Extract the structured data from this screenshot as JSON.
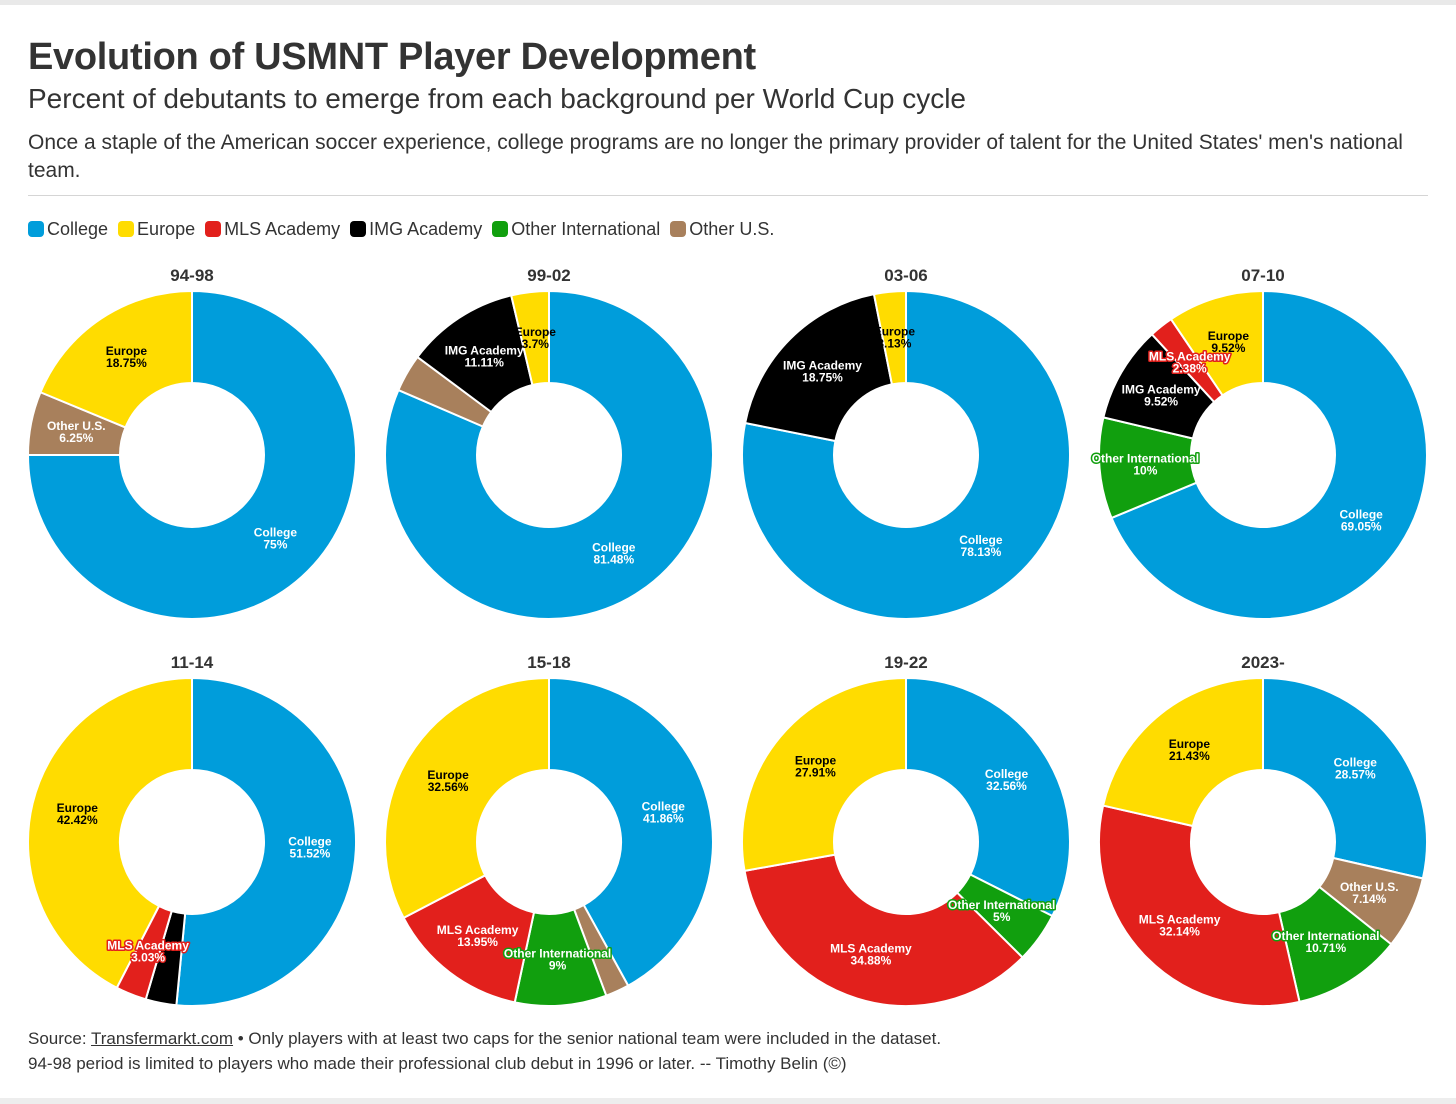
{
  "header": {
    "title": "Evolution of USMNT Player Development",
    "subtitle": "Percent of debutants to emerge from each background per World Cup cycle",
    "description": "Once a staple of the American soccer experience, college programs are no longer the primary provider of talent for the United States' men's national team."
  },
  "colors": {
    "College": "#009ddb",
    "Europe": "#ffdc00",
    "MLS Academy": "#e2201c",
    "IMG Academy": "#000000",
    "Other International": "#119f0e",
    "Other U.S.": "#a8805c"
  },
  "legend": [
    {
      "label": "College",
      "color": "#009ddb"
    },
    {
      "label": "Europe",
      "color": "#ffdc00"
    },
    {
      "label": "MLS Academy",
      "color": "#e2201c"
    },
    {
      "label": "IMG Academy",
      "color": "#000000"
    },
    {
      "label": "Other International",
      "color": "#119f0e"
    },
    {
      "label": "Other U.S.",
      "color": "#a8805c"
    }
  ],
  "chart_data": [
    {
      "type": "donut",
      "title": "94-98",
      "slices": [
        {
          "label": "College",
          "value": 75,
          "text": "75%"
        },
        {
          "label": "Europe",
          "value": 18.75,
          "text": "18.75%"
        },
        {
          "label": "Other U.S.",
          "value": 6.25,
          "text": "6.25%"
        }
      ]
    },
    {
      "type": "donut",
      "title": "99-02",
      "slices": [
        {
          "label": "College",
          "value": 81.48,
          "text": "81.48%"
        },
        {
          "label": "Europe",
          "value": 3.7,
          "text": "3.7%"
        },
        {
          "label": "IMG Academy",
          "value": 11.11,
          "text": "11.11%"
        },
        {
          "label": "Other U.S.",
          "value": 3.71
        }
      ]
    },
    {
      "type": "donut",
      "title": "03-06",
      "slices": [
        {
          "label": "College",
          "value": 78.13,
          "text": "78.13%"
        },
        {
          "label": "Europe",
          "value": 3.13,
          "text": "3.13%"
        },
        {
          "label": "IMG Academy",
          "value": 18.75,
          "text": "18.75%"
        }
      ]
    },
    {
      "type": "donut",
      "title": "07-10",
      "slices": [
        {
          "label": "College",
          "value": 69.05,
          "text": "69.05%"
        },
        {
          "label": "Europe",
          "value": 9.52,
          "text": "9.52%"
        },
        {
          "label": "MLS Academy",
          "value": 2.38,
          "text": "2.38%"
        },
        {
          "label": "IMG Academy",
          "value": 9.52,
          "text": "9.52%"
        },
        {
          "label": "Other International",
          "value": 10,
          "text": "10%"
        }
      ]
    },
    {
      "type": "donut",
      "title": "11-14",
      "slices": [
        {
          "label": "College",
          "value": 51.52,
          "text": "51.52%"
        },
        {
          "label": "Europe",
          "value": 42.42,
          "text": "42.42%"
        },
        {
          "label": "MLS Academy",
          "value": 3.03,
          "text": "3.03%"
        },
        {
          "label": "IMG Academy",
          "value": 3.03
        }
      ]
    },
    {
      "type": "donut",
      "title": "15-18",
      "slices": [
        {
          "label": "College",
          "value": 41.86,
          "text": "41.86%"
        },
        {
          "label": "Europe",
          "value": 32.56,
          "text": "32.56%"
        },
        {
          "label": "MLS Academy",
          "value": 13.95,
          "text": "13.95%"
        },
        {
          "label": "Other International",
          "value": 9,
          "text": "9%"
        },
        {
          "label": "Other U.S.",
          "value": 2.33
        }
      ]
    },
    {
      "type": "donut",
      "title": "19-22",
      "slices": [
        {
          "label": "College",
          "value": 32.56,
          "text": "32.56%"
        },
        {
          "label": "Europe",
          "value": 27.91,
          "text": "27.91%"
        },
        {
          "label": "MLS Academy",
          "value": 34.88,
          "text": "34.88%"
        },
        {
          "label": "Other International",
          "value": 5,
          "text": "5%"
        }
      ]
    },
    {
      "type": "donut",
      "title": "2023-",
      "slices": [
        {
          "label": "College",
          "value": 28.57,
          "text": "28.57%"
        },
        {
          "label": "Europe",
          "value": 21.43,
          "text": "21.43%"
        },
        {
          "label": "MLS Academy",
          "value": 32.14,
          "text": "32.14%"
        },
        {
          "label": "Other International",
          "value": 10.71,
          "text": "10.71%"
        },
        {
          "label": "Other U.S.",
          "value": 7.14,
          "text": "7.14%"
        }
      ]
    }
  ],
  "footer": {
    "source_prefix": "Source: ",
    "source_link": "Transfermarkt.com",
    "source_note": " • Only players with at least two caps for the senior national team were included in the dataset.",
    "line2": "94-98 period is limited to players who made their professional club debut in 1996 or later. -- Timothy Belin (©)"
  }
}
